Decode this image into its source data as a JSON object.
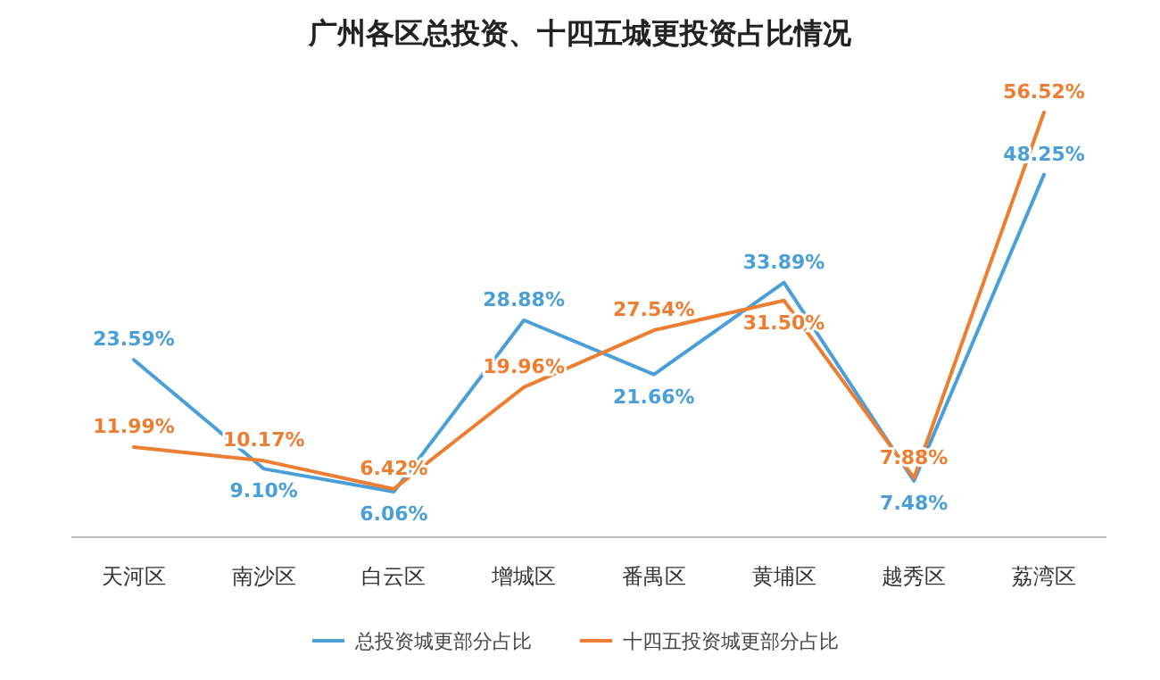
{
  "chart_data": {
    "type": "line",
    "title": "广州各区总投资、十四五城更投资占比情况",
    "categories": [
      "天河区",
      "南沙区",
      "白云区",
      "增城区",
      "番禺区",
      "黄埔区",
      "越秀区",
      "荔湾区"
    ],
    "series": [
      {
        "name": "总投资城更部分占比",
        "color": "#4a9fd8",
        "values": [
          23.59,
          9.1,
          6.06,
          28.88,
          21.66,
          33.89,
          7.48,
          48.25
        ],
        "value_labels": [
          "23.59%",
          "9.10%",
          "6.06%",
          "28.88%",
          "21.66%",
          "33.89%",
          "7.48%",
          "48.25%"
        ]
      },
      {
        "name": "十四五投资城更部分占比",
        "color": "#ed7d31",
        "values": [
          11.99,
          10.17,
          6.42,
          19.96,
          27.54,
          31.5,
          7.88,
          56.52
        ],
        "value_labels": [
          "11.99%",
          "10.17%",
          "6.42%",
          "19.96%",
          "27.54%",
          "31.50%",
          "7.88%",
          "56.52%"
        ]
      }
    ],
    "legend": "bottom",
    "grid": false,
    "marker": "none",
    "line_style": "solid"
  }
}
